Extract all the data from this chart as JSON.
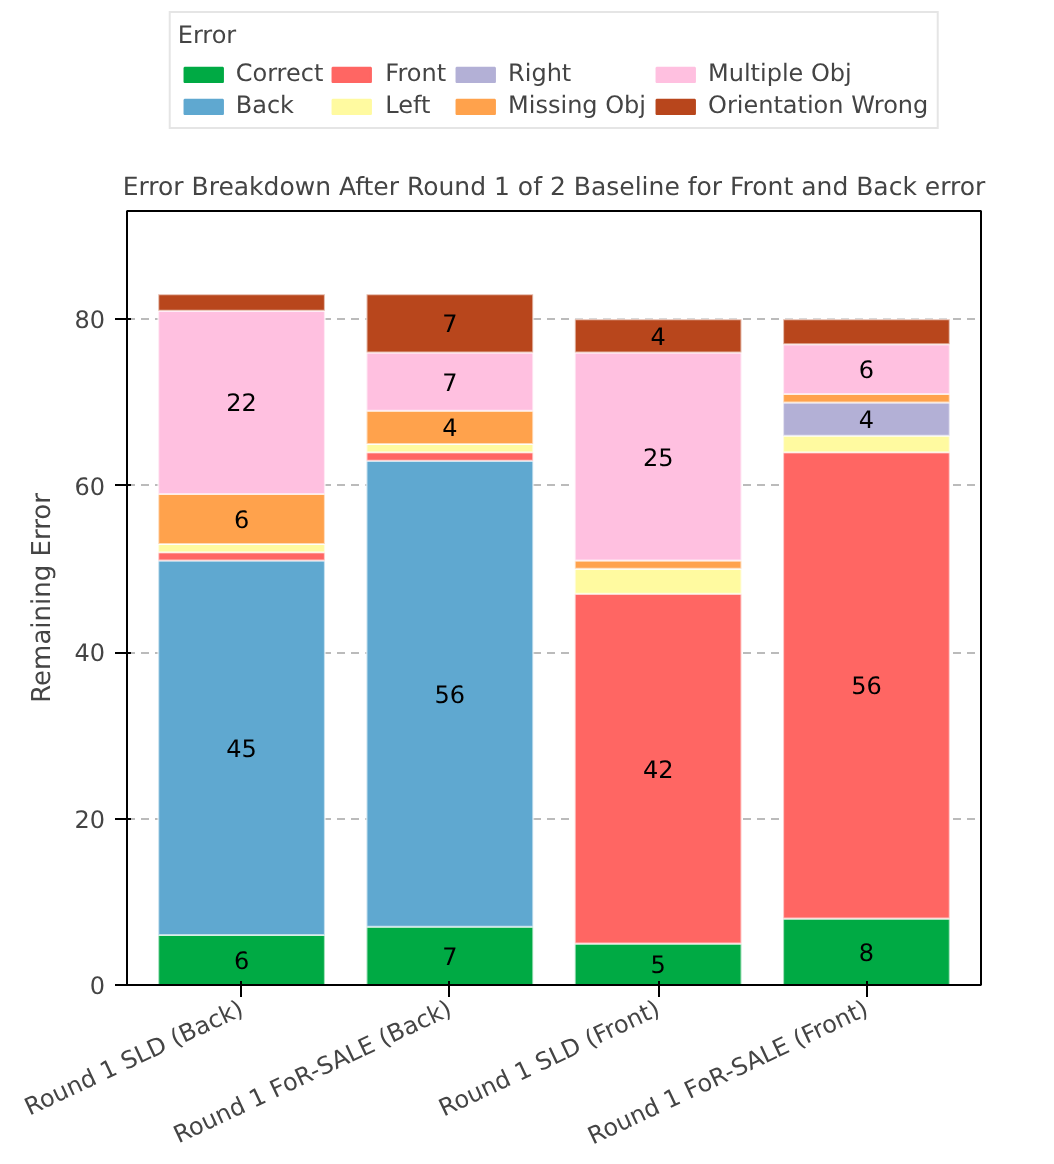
{
  "chart_data": {
    "type": "bar",
    "stacked": true,
    "title": "Error Breakdown After Round 1 of 2 Baseline for Front and Back error",
    "ylabel": "Remaining Error",
    "legend_title": "Error",
    "legend": "top",
    "categories": [
      "Round 1 SLD (Back)",
      "Round 1 FoR-SALE (Back)",
      "Round 1 SLD (Front)",
      "Round 1 FoR-SALE (Front)"
    ],
    "ylim": [
      0,
      93
    ],
    "yticks": [
      0,
      20,
      40,
      60,
      80
    ],
    "grid": "y",
    "series": [
      {
        "name": "Correct",
        "color": "#00aa44",
        "values": [
          6,
          7,
          5,
          8
        ],
        "value_labels": [
          "6",
          "7",
          "5",
          "8"
        ]
      },
      {
        "name": "Back",
        "color": "#5fa8d0",
        "values": [
          45,
          56,
          0,
          0
        ],
        "value_labels": [
          "45",
          "56",
          null,
          null
        ]
      },
      {
        "name": "Front",
        "color": "#ff6663",
        "values": [
          1,
          1,
          42,
          56
        ],
        "value_labels": [
          null,
          null,
          "42",
          "56"
        ]
      },
      {
        "name": "Left",
        "color": "#fffaa0",
        "values": [
          1,
          1,
          3,
          2
        ],
        "value_labels": [
          null,
          null,
          null,
          null
        ]
      },
      {
        "name": "Right",
        "color": "#b3b0d6",
        "values": [
          0,
          0,
          0,
          4
        ],
        "value_labels": [
          null,
          null,
          null,
          "4"
        ]
      },
      {
        "name": "Missing Obj",
        "color": "#ffa24c",
        "values": [
          6,
          4,
          1,
          1
        ],
        "value_labels": [
          "6",
          "4",
          null,
          null
        ]
      },
      {
        "name": "Multiple Obj",
        "color": "#ffc0e0",
        "values": [
          22,
          7,
          25,
          6
        ],
        "value_labels": [
          "22",
          "7",
          "25",
          "6"
        ]
      },
      {
        "name": "Orientation Wrong",
        "color": "#b8461c",
        "values": [
          2,
          7,
          4,
          3
        ],
        "value_labels": [
          null,
          "7",
          "4",
          null
        ]
      }
    ]
  }
}
